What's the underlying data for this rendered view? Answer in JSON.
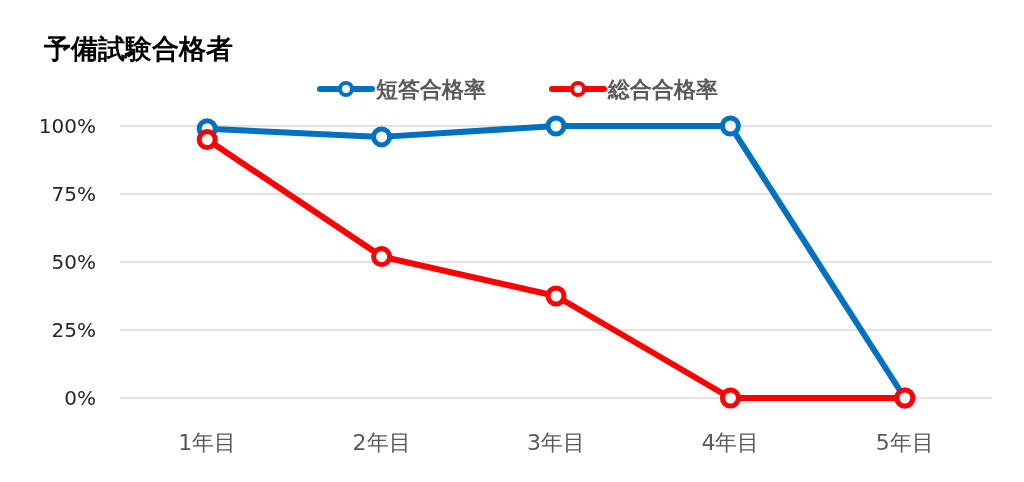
{
  "chart_data": {
    "type": "line",
    "title": "予備試験合格者",
    "categories": [
      "1年目",
      "2年目",
      "3年目",
      "4年目",
      "5年目"
    ],
    "series": [
      {
        "name": "短答合格率",
        "color": "#0070c0",
        "values": [
          99,
          96,
          100,
          100,
          0
        ]
      },
      {
        "name": "総合合格率",
        "color": "#ff0000",
        "values": [
          95,
          52,
          37.5,
          0,
          0
        ]
      }
    ],
    "ylim": [
      0,
      100
    ],
    "yticks": [
      {
        "value": 0,
        "label": "0%"
      },
      {
        "value": 25,
        "label": "25%"
      },
      {
        "value": 50,
        "label": "50%"
      },
      {
        "value": 75,
        "label": "75%"
      },
      {
        "value": 100,
        "label": "100%"
      }
    ],
    "grid": "y",
    "legend": "top",
    "marker": "circle",
    "line_style": "solid"
  }
}
